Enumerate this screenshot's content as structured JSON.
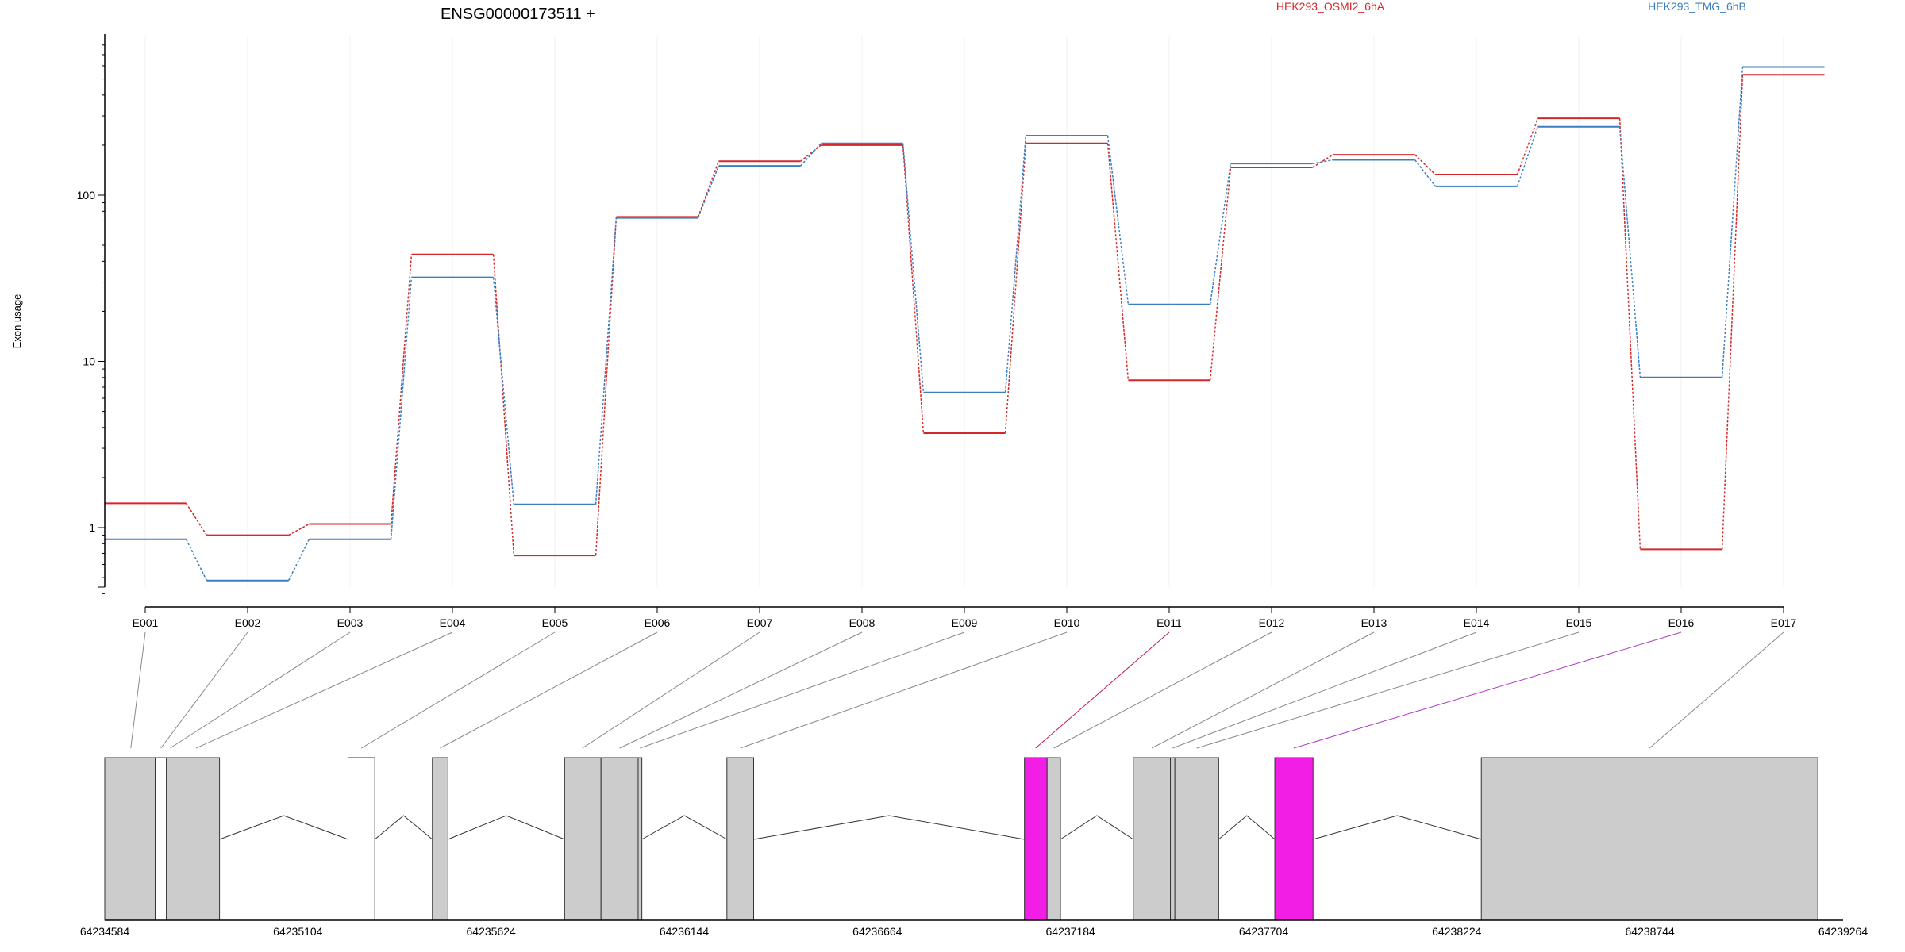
{
  "chart_data": {
    "type": "line",
    "title": "ENSG00000173511 +",
    "ylabel": "Exon usage",
    "xlabel": "",
    "y_scale": "log",
    "ylim": [
      0.4,
      800
    ],
    "y_ticks": [
      1,
      10,
      100
    ],
    "y_tick_labels": [
      "1",
      "10",
      "100"
    ],
    "grid": "vertical lines at each exon",
    "legend_placement": "top-right",
    "categories": [
      "E001",
      "E002",
      "E003",
      "E004",
      "E005",
      "E006",
      "E007",
      "E008",
      "E009",
      "E010",
      "E011",
      "E012",
      "E013",
      "E014",
      "E015",
      "E016",
      "E017"
    ],
    "series": [
      {
        "name": "HEK293_OSMI2_6hA",
        "color": "#d62728",
        "values": [
          1.4,
          0.9,
          1.05,
          44,
          0.68,
          74,
          160,
          200,
          3.7,
          205,
          7.7,
          147,
          175,
          133,
          290,
          0.74,
          530
        ]
      },
      {
        "name": "HEK293_TMG_6hB",
        "color": "#3a7fc1",
        "values": [
          0.85,
          0.48,
          0.85,
          32,
          1.38,
          73,
          150,
          205,
          6.5,
          228,
          22,
          155,
          163,
          113,
          258,
          8.0,
          590
        ]
      }
    ],
    "gene_model": {
      "coordinate_ticks": [
        "64234584",
        "64235104",
        "64235624",
        "64236144",
        "64236664",
        "64237184",
        "64237704",
        "64238224",
        "64238744",
        "64239264"
      ],
      "range": [
        64234584,
        64239264
      ],
      "highlight_color": "#f21ee6",
      "exon_fill": "#cccccc",
      "blocks": [
        {
          "start": 64234584,
          "end": 64234720,
          "fill": "gray"
        },
        {
          "start": 64234720,
          "end": 64234750,
          "fill": "white"
        },
        {
          "start": 64234750,
          "end": 64234893,
          "fill": "gray"
        },
        {
          "start": 64235239,
          "end": 64235311,
          "fill": "white"
        },
        {
          "start": 64235466,
          "end": 64235508,
          "fill": "gray"
        },
        {
          "start": 64235822,
          "end": 64235920,
          "fill": "gray"
        },
        {
          "start": 64235920,
          "end": 64236020,
          "fill": "gray"
        },
        {
          "start": 64236020,
          "end": 64236030,
          "fill": "gray"
        },
        {
          "start": 64236259,
          "end": 64236331,
          "fill": "gray"
        },
        {
          "start": 64237060,
          "end": 64237121,
          "fill": "highlight"
        },
        {
          "start": 64237121,
          "end": 64237157,
          "fill": "gray"
        },
        {
          "start": 64237353,
          "end": 64237453,
          "fill": "gray"
        },
        {
          "start": 64237453,
          "end": 64237465,
          "fill": "gray"
        },
        {
          "start": 64237465,
          "end": 64237583,
          "fill": "gray"
        },
        {
          "start": 64237734,
          "end": 64237837,
          "fill": "highlight"
        },
        {
          "start": 64238290,
          "end": 64239196,
          "fill": "gray"
        }
      ],
      "introns": [
        [
          64234893,
          64235239
        ],
        [
          64235311,
          64235466
        ],
        [
          64235508,
          64235822
        ],
        [
          64236030,
          64236259
        ],
        [
          64236331,
          64237060
        ],
        [
          64237157,
          64237353
        ],
        [
          64237583,
          64237734
        ],
        [
          64237837,
          64238290
        ]
      ],
      "exon_links": [
        {
          "exon": "E001",
          "pos": 64234654,
          "color": "#888888"
        },
        {
          "exon": "E002",
          "pos": 64234735,
          "color": "#888888"
        },
        {
          "exon": "E003",
          "pos": 64234760,
          "color": "#888888"
        },
        {
          "exon": "E004",
          "pos": 64234830,
          "color": "#888888"
        },
        {
          "exon": "E005",
          "pos": 64235275,
          "color": "#888888"
        },
        {
          "exon": "E006",
          "pos": 64235487,
          "color": "#888888"
        },
        {
          "exon": "E007",
          "pos": 64235870,
          "color": "#888888"
        },
        {
          "exon": "E008",
          "pos": 64235970,
          "color": "#888888"
        },
        {
          "exon": "E009",
          "pos": 64236025,
          "color": "#888888"
        },
        {
          "exon": "E010",
          "pos": 64236295,
          "color": "#888888"
        },
        {
          "exon": "E011",
          "pos": 64237090,
          "color": "#c2185b"
        },
        {
          "exon": "E012",
          "pos": 64237139,
          "color": "#888888"
        },
        {
          "exon": "E013",
          "pos": 64237403,
          "color": "#888888"
        },
        {
          "exon": "E014",
          "pos": 64237459,
          "color": "#888888"
        },
        {
          "exon": "E015",
          "pos": 64237524,
          "color": "#888888"
        },
        {
          "exon": "E016",
          "pos": 64237785,
          "color": "#b03ac7"
        },
        {
          "exon": "E017",
          "pos": 64238743,
          "color": "#888888"
        }
      ]
    }
  }
}
